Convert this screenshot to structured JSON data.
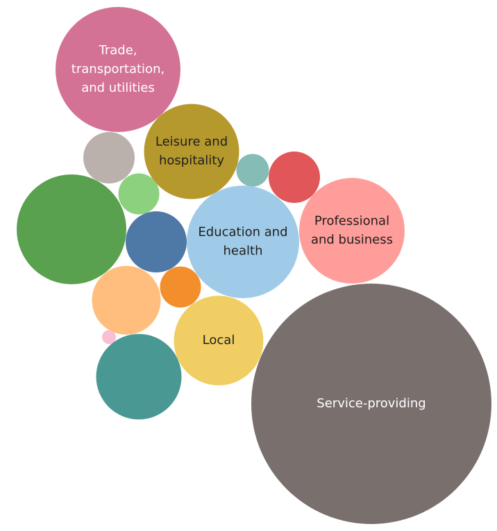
{
  "chart_data": {
    "type": "bubble",
    "title": "",
    "bubbles": [
      {
        "label": "Trade,\ntransportation,\nand utilities",
        "color": "#d37295",
        "text_color": "#ffffff",
        "size": 32400
      },
      {
        "label": "Leisure and\nhospitality",
        "color": "#b6992d",
        "text_color": "#1f1f1f",
        "size": 18769
      },
      {
        "label": "",
        "color": "#bab0ac",
        "size": 5476
      },
      {
        "label": "",
        "color": "#8cd17d",
        "size": 3481
      },
      {
        "label": "",
        "color": "#86bcb6",
        "size": 2209
      },
      {
        "label": "",
        "color": "#e15759",
        "size": 5476
      },
      {
        "label": "",
        "color": "#59a14f",
        "size": 24964
      },
      {
        "label": "",
        "color": "#4e79a7",
        "size": 7744
      },
      {
        "label": "Education and\nhealth",
        "color": "#a0cbe8",
        "text_color": "#1f1f1f",
        "size": 26244
      },
      {
        "label": "Professional\nand business",
        "color": "#ff9d9a",
        "text_color": "#1f1f1f",
        "size": 23104
      },
      {
        "label": "",
        "color": "#ffbe7d",
        "size": 9801
      },
      {
        "label": "",
        "color": "#f28e2b",
        "size": 3481
      },
      {
        "label": "",
        "color": "#fabfd2",
        "size": 400
      },
      {
        "label": "Local",
        "color": "#f1ce63",
        "text_color": "#1f1f1f",
        "size": 16641
      },
      {
        "label": "",
        "color": "#499894",
        "size": 15129
      },
      {
        "label": "Service-providing",
        "color": "#79706e",
        "text_color": "#ffffff",
        "size": 119716
      }
    ]
  }
}
